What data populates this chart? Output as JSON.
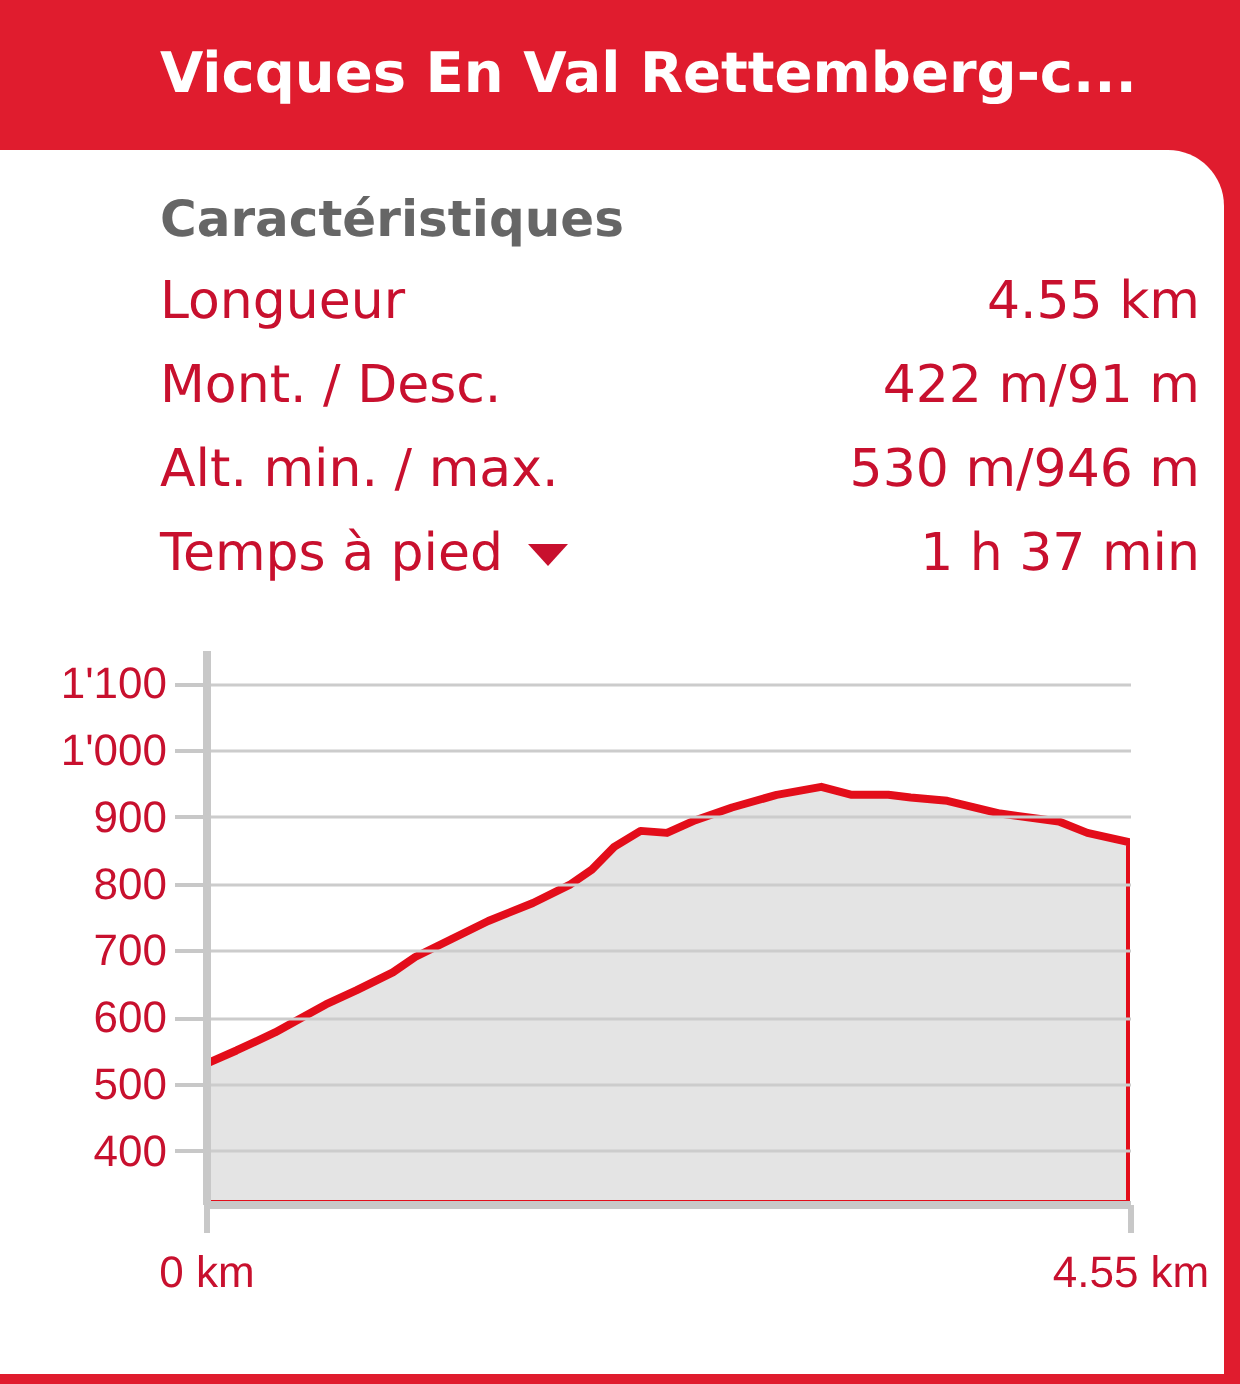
{
  "chart_data": {
    "type": "area",
    "title": "Vicques En Val Rettemberg-c...",
    "subtitle": "Caractéristiques",
    "annotations": [
      "Longueur",
      "4.55 km",
      "Mont. / Desc.",
      "422 m/91 m",
      "Alt. min. / max.",
      "530 m/946 m",
      "Temps à pied",
      "1 h 37 min"
    ],
    "x": [
      0,
      0.15,
      0.34,
      0.59,
      0.74,
      0.92,
      1.03,
      1.21,
      1.39,
      1.61,
      1.79,
      1.9,
      2.01,
      2.14,
      2.27,
      2.41,
      2.59,
      2.81,
      3.03,
      3.18,
      3.36,
      3.47,
      3.65,
      3.91,
      4.2,
      4.34,
      4.55
    ],
    "series": [
      {
        "color": "#e30d1a",
        "values": [
          530,
          550,
          577,
          619,
          640,
          667,
          690,
          717,
          744,
          771,
          798,
          821,
          855,
          879,
          876,
          895,
          914,
          933,
          945,
          933,
          933,
          929,
          924,
          905,
          893,
          876,
          862
        ]
      }
    ],
    "xlim": [
      0,
      4.55
    ],
    "xticks": [
      {
        "value": 0,
        "label": "0 km"
      },
      {
        "value": 4.55,
        "label": "4.55 km"
      }
    ],
    "ylim": [
      320,
      1150
    ],
    "yticks": [
      400,
      500,
      600,
      700,
      800,
      900,
      {
        "value": 1000,
        "label": "1'000"
      },
      {
        "value": 1100,
        "label": "1'100"
      }
    ],
    "grid": "y"
  }
}
